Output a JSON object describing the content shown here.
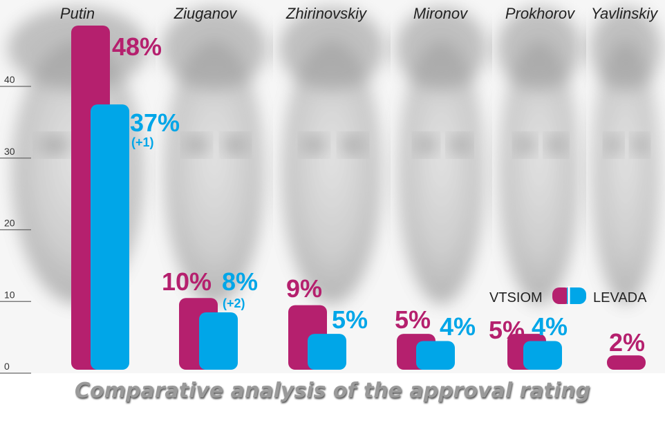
{
  "colors": {
    "vtsiom": "#b5206e",
    "levada": "#00a6e8",
    "axis_text": "#333333",
    "title": "#9a9a9a"
  },
  "title": "Comparative analysis of the approval rating",
  "legend": {
    "vtsiom_label": "VTSIOM",
    "levada_label": "LEVADA",
    "placement": "right-middle"
  },
  "chart_data": {
    "type": "bar",
    "title": "Comparative analysis of the approval rating",
    "xlabel": "",
    "ylabel": "",
    "ylim": [
      0,
      50
    ],
    "yticks": [
      "0",
      "10",
      "20",
      "30",
      "40"
    ],
    "categories": [
      "Putin",
      "Ziuganov",
      "Zhirinovskiy",
      "Mironov",
      "Prokhorov",
      "Yavlinskiy"
    ],
    "series": [
      {
        "name": "VTSIOM",
        "values": [
          48,
          10,
          9,
          5,
          5,
          2
        ],
        "labels": [
          "48%",
          "10%",
          "9%",
          "5%",
          "5%",
          "2%"
        ]
      },
      {
        "name": "LEVADA",
        "values": [
          37,
          8,
          5,
          4,
          4,
          null
        ],
        "labels": [
          "37%",
          "8%",
          "5%",
          "4%",
          "4%",
          ""
        ],
        "changes": [
          "(+1)",
          "(+2)",
          "",
          "",
          "",
          ""
        ]
      }
    ]
  }
}
